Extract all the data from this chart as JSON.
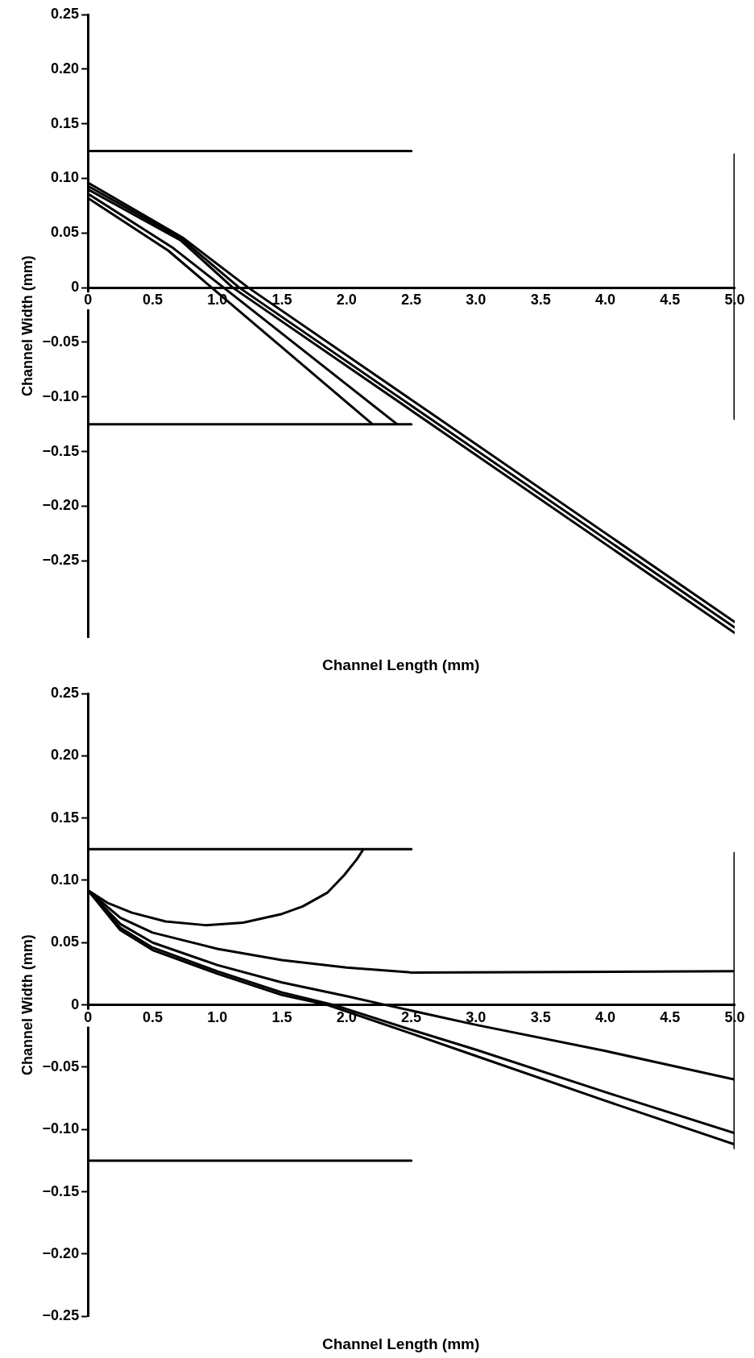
{
  "chart_data": [
    {
      "type": "line",
      "xlabel": "Channel Length (mm)",
      "ylabel": "Channel Width (mm)",
      "xlim": [
        0,
        5.0
      ],
      "ylim": [
        -0.32,
        0.25
      ],
      "xticks": [
        0,
        {
          "value": 0.5,
          "label": "0.5"
        },
        {
          "value": 1,
          "label": "1.0"
        },
        {
          "value": 1.5,
          "label": "1.5"
        },
        {
          "value": 2,
          "label": "2.0"
        },
        {
          "value": 2.5,
          "label": "2.5"
        },
        {
          "value": 3,
          "label": "3.0"
        },
        {
          "value": 3.5,
          "label": "3.5"
        },
        {
          "value": 4,
          "label": "4.0"
        },
        {
          "value": 4.5,
          "label": "4.5"
        },
        {
          "value": 5,
          "label": "5.0"
        }
      ],
      "yticks": [
        {
          "value": -0.25,
          "label": "−0.25"
        },
        {
          "value": -0.2,
          "label": "−0.20"
        },
        {
          "value": -0.15,
          "label": "−0.15"
        },
        {
          "value": -0.1,
          "label": "−0.10"
        },
        {
          "value": -0.05,
          "label": "−0.05"
        },
        0,
        {
          "value": 0.05,
          "label": "0.05"
        },
        {
          "value": 0.1,
          "label": "0.10"
        },
        {
          "value": 0.15,
          "label": "0.15"
        },
        {
          "value": 0.2,
          "label": "0.20"
        },
        {
          "value": 0.25,
          "label": "0.25"
        }
      ],
      "grid": false,
      "legend": false,
      "marker": "none",
      "line_style": "solid",
      "series": [
        {
          "color": "#000000",
          "x": [
            0,
            2.5
          ],
          "values": [
            0.125,
            0.125
          ]
        },
        {
          "color": "#000000",
          "x": [
            0,
            2.5
          ],
          "values": [
            -0.125,
            -0.125
          ]
        },
        {
          "color": "#000000",
          "x": [
            5,
            5
          ],
          "values": [
            0.122,
            -0.12
          ]
        },
        {
          "color": "#000000",
          "x": [
            0,
            0.62,
            0.957,
            2.2
          ],
          "values": [
            0.082,
            0.034,
            0,
            -0.125
          ]
        },
        {
          "color": "#000000",
          "x": [
            0,
            0.65,
            1.05,
            2.39
          ],
          "values": [
            0.086,
            0.037,
            0,
            -0.125
          ]
        },
        {
          "color": "#000000",
          "x": [
            0,
            0.72,
            1.12,
            5
          ],
          "values": [
            0.09,
            0.043,
            0,
            -0.316
          ]
        },
        {
          "color": "#000000",
          "x": [
            0,
            0.72,
            1.17,
            5
          ],
          "values": [
            0.093,
            0.045,
            0,
            -0.311
          ]
        },
        {
          "color": "#000000",
          "x": [
            0,
            0.73,
            1.24,
            5
          ],
          "values": [
            0.096,
            0.046,
            0,
            -0.306
          ]
        }
      ]
    },
    {
      "type": "line",
      "xlabel": "Channel Length (mm)",
      "ylabel": "Channel Width (mm)",
      "xlim": [
        0,
        5.0
      ],
      "ylim": [
        -0.25,
        0.25
      ],
      "xticks": [
        0,
        {
          "value": 0.5,
          "label": "0.5"
        },
        {
          "value": 1,
          "label": "1.0"
        },
        {
          "value": 1.5,
          "label": "1.5"
        },
        {
          "value": 2,
          "label": "2.0"
        },
        {
          "value": 2.5,
          "label": "2.5"
        },
        {
          "value": 3,
          "label": "3.0"
        },
        {
          "value": 3.5,
          "label": "3.5"
        },
        {
          "value": 4,
          "label": "4.0"
        },
        {
          "value": 4.5,
          "label": "4.5"
        },
        {
          "value": 5,
          "label": "5.0"
        }
      ],
      "yticks": [
        {
          "value": -0.25,
          "label": "−0.25"
        },
        {
          "value": -0.2,
          "label": "−0.20"
        },
        {
          "value": -0.15,
          "label": "−0.15"
        },
        {
          "value": -0.1,
          "label": "−0.10"
        },
        {
          "value": -0.05,
          "label": "−0.05"
        },
        0,
        {
          "value": 0.05,
          "label": "0.05"
        },
        {
          "value": 0.1,
          "label": "0.10"
        },
        {
          "value": 0.15,
          "label": "0.15"
        },
        {
          "value": 0.2,
          "label": "0.20"
        },
        {
          "value": 0.25,
          "label": "0.25"
        }
      ],
      "grid": false,
      "legend": false,
      "marker": "none",
      "line_style": "solid",
      "series": [
        {
          "color": "#000000",
          "x": [
            0,
            2.5
          ],
          "values": [
            0.125,
            0.125
          ]
        },
        {
          "color": "#000000",
          "x": [
            0,
            2.5
          ],
          "values": [
            -0.125,
            -0.125
          ]
        },
        {
          "color": "#000000",
          "x": [
            5,
            5
          ],
          "values": [
            0.122,
            -0.115
          ]
        },
        {
          "color": "#000000",
          "x": [
            0,
            0.15,
            0.34,
            0.6,
            0.91,
            1.2,
            1.5,
            1.66,
            1.85,
            1.98,
            2.08,
            2.13
          ],
          "values": [
            0.092,
            0.082,
            0.074,
            0.067,
            0.064,
            0.066,
            0.073,
            0.079,
            0.09,
            0.104,
            0.117,
            0.125
          ]
        },
        {
          "color": "#000000",
          "x": [
            0,
            0.25,
            0.5,
            1,
            1.5,
            2,
            2.5,
            5
          ],
          "values": [
            0.092,
            0.07,
            0.058,
            0.045,
            0.036,
            0.03,
            0.026,
            0.027
          ]
        },
        {
          "color": "#000000",
          "x": [
            0,
            0.25,
            0.5,
            1,
            1.5,
            2,
            2.3,
            3,
            4,
            5
          ],
          "values": [
            0.092,
            0.065,
            0.05,
            0.032,
            0.018,
            0.007,
            0,
            -0.016,
            -0.037,
            -0.06
          ]
        },
        {
          "color": "#000000",
          "x": [
            0,
            0.25,
            0.5,
            1,
            1.5,
            1.9,
            2.5,
            3,
            4,
            5
          ],
          "values": [
            0.092,
            0.062,
            0.046,
            0.027,
            0.01,
            0,
            -0.02,
            -0.036,
            -0.07,
            -0.103
          ]
        },
        {
          "color": "#000000",
          "x": [
            0,
            0.25,
            0.5,
            1,
            1.5,
            1.85,
            2.5,
            3,
            4,
            5
          ],
          "values": [
            0.092,
            0.06,
            0.044,
            0.025,
            0.008,
            0,
            -0.023,
            -0.041,
            -0.077,
            -0.112
          ]
        }
      ]
    }
  ]
}
